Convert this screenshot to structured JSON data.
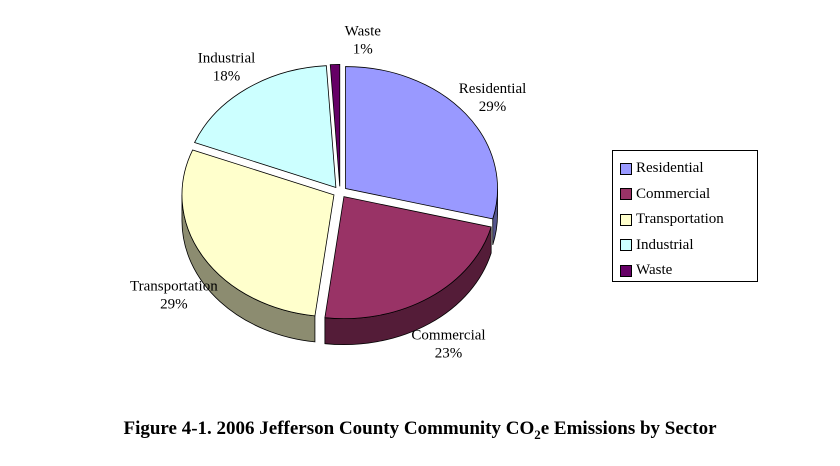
{
  "chart_data": {
    "type": "pie",
    "title": "Figure 4-1. 2006 Jefferson County Community CO₂e Emissions by Sector",
    "legend_position": "right",
    "slices": [
      {
        "label": "Residential",
        "value": 29,
        "value_label": "29%",
        "color": "#9999FF"
      },
      {
        "label": "Commercial",
        "value": 23,
        "value_label": "23%",
        "color": "#993366"
      },
      {
        "label": "Transportation",
        "value": 29,
        "value_label": "29%",
        "color": "#FFFFCC"
      },
      {
        "label": "Industrial",
        "value": 18,
        "value_label": "18%",
        "color": "#CCFFFF"
      },
      {
        "label": "Waste",
        "value": 1,
        "value_label": "1%",
        "color": "#660066"
      }
    ]
  },
  "caption": {
    "prefix": "Figure 4-1. 2006 Jefferson County Community CO",
    "subscript": "2",
    "suffix": "e Emissions by Sector"
  }
}
